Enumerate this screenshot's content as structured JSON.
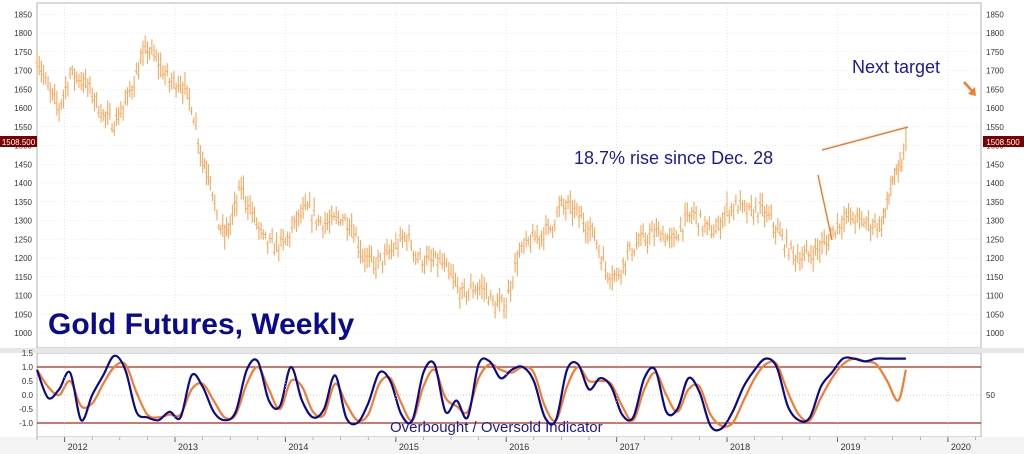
{
  "chart_data": [
    {
      "type": "bar",
      "subtype": "ohlc",
      "title": "Gold Futures, Weekly",
      "annotations": [
        "18.7% rise since Dec. 28",
        "Next target"
      ],
      "price_tag": "1508.500",
      "ylim": [
        960,
        1880
      ],
      "yticks": [
        1000,
        1050,
        1100,
        1150,
        1200,
        1250,
        1300,
        1350,
        1400,
        1450,
        1500,
        1550,
        1600,
        1650,
        1700,
        1750,
        1800,
        1850
      ],
      "x_range": [
        2011.75,
        2020.3
      ],
      "xticks": [
        "2012",
        "2013",
        "2014",
        "2015",
        "2016",
        "2017",
        "2018",
        "2019",
        "2020"
      ],
      "grid": true,
      "colors": {
        "bars": "#f5a85e",
        "title": "#0a0a8c",
        "annotation": "#1a1a9a",
        "arrow": "#f47c30",
        "tag_bg": "#7a0000"
      },
      "series": [
        {
          "x": [
            2011.75,
            2011.85,
            2011.95,
            2012.05,
            2012.15,
            2012.25,
            2012.35,
            2012.45,
            2012.55,
            2012.65,
            2012.75,
            2012.85,
            2012.95,
            2013.05,
            2013.15,
            2013.25,
            2013.32,
            2013.38,
            2013.45,
            2013.5,
            2013.6,
            2013.7,
            2013.8,
            2013.9,
            2014.0,
            2014.1,
            2014.2,
            2014.3,
            2014.4,
            2014.5,
            2014.6,
            2014.7,
            2014.8,
            2014.9,
            2015.0,
            2015.1,
            2015.2,
            2015.3,
            2015.4,
            2015.5,
            2015.6,
            2015.7,
            2015.8,
            2015.9,
            2016.0,
            2016.1,
            2016.2,
            2016.3,
            2016.4,
            2016.5,
            2016.6,
            2016.7,
            2016.8,
            2016.9,
            2017.0,
            2017.1,
            2017.2,
            2017.3,
            2017.4,
            2017.5,
            2017.6,
            2017.7,
            2017.8,
            2017.9,
            2018.0,
            2018.1,
            2018.2,
            2018.3,
            2018.4,
            2018.5,
            2018.6,
            2018.7,
            2018.8,
            2018.9,
            2019.0,
            2019.1,
            2019.2,
            2019.3,
            2019.4,
            2019.45,
            2019.5,
            2019.55,
            2019.6,
            2019.62
          ],
          "values": [
            1740,
            1650,
            1600,
            1690,
            1680,
            1640,
            1580,
            1560,
            1610,
            1690,
            1760,
            1720,
            1670,
            1670,
            1610,
            1460,
            1420,
            1300,
            1260,
            1290,
            1390,
            1320,
            1250,
            1230,
            1240,
            1300,
            1330,
            1300,
            1290,
            1310,
            1290,
            1210,
            1180,
            1200,
            1230,
            1260,
            1200,
            1190,
            1190,
            1150,
            1100,
            1120,
            1120,
            1070,
            1080,
            1200,
            1240,
            1260,
            1280,
            1340,
            1330,
            1300,
            1260,
            1170,
            1150,
            1210,
            1240,
            1260,
            1270,
            1240,
            1290,
            1320,
            1280,
            1270,
            1330,
            1340,
            1320,
            1330,
            1300,
            1250,
            1210,
            1200,
            1220,
            1240,
            1290,
            1310,
            1300,
            1290,
            1290,
            1340,
            1410,
            1420,
            1470,
            1510
          ]
        }
      ]
    },
    {
      "type": "line",
      "title": "Overbought / Oversold Indicator",
      "ylim": [
        -1.5,
        1.5
      ],
      "yticks": [
        "1.5",
        "1.0",
        "0.5",
        "0.0",
        "-0.5",
        "-1.0"
      ],
      "right_tick": "50",
      "levels": [
        1.0,
        -1.0
      ],
      "series": [
        {
          "name": "",
          "color": "#0a0a8c",
          "x": [
            2011.75,
            2011.85,
            2011.95,
            2012.05,
            2012.15,
            2012.25,
            2012.35,
            2012.45,
            2012.55,
            2012.65,
            2012.75,
            2012.85,
            2012.95,
            2013.05,
            2013.15,
            2013.25,
            2013.35,
            2013.45,
            2013.55,
            2013.65,
            2013.75,
            2013.85,
            2013.95,
            2014.05,
            2014.15,
            2014.25,
            2014.35,
            2014.45,
            2014.55,
            2014.65,
            2014.75,
            2014.85,
            2014.95,
            2015.05,
            2015.15,
            2015.25,
            2015.35,
            2015.45,
            2015.55,
            2015.65,
            2015.75,
            2015.85,
            2015.95,
            2016.05,
            2016.15,
            2016.25,
            2016.35,
            2016.45,
            2016.55,
            2016.65,
            2016.75,
            2016.85,
            2016.95,
            2017.05,
            2017.15,
            2017.25,
            2017.35,
            2017.45,
            2017.55,
            2017.65,
            2017.75,
            2017.85,
            2017.95,
            2018.05,
            2018.15,
            2018.25,
            2018.35,
            2018.45,
            2018.55,
            2018.65,
            2018.75,
            2018.85,
            2018.95,
            2019.05,
            2019.15,
            2019.25,
            2019.35,
            2019.45,
            2019.55,
            2019.62
          ],
          "values": [
            0.9,
            -0.1,
            0.2,
            0.8,
            -0.9,
            0.0,
            0.7,
            1.4,
            0.9,
            -0.6,
            -0.8,
            -0.9,
            -0.6,
            -0.8,
            0.7,
            0.3,
            -0.6,
            -0.9,
            -0.6,
            0.9,
            1.2,
            -0.2,
            -0.4,
            1.0,
            -0.2,
            -0.8,
            -0.5,
            0.7,
            -0.8,
            -1.0,
            -0.3,
            0.8,
            0.5,
            -0.7,
            -0.9,
            0.8,
            1.1,
            -0.6,
            -0.2,
            -0.8,
            1.1,
            1.2,
            0.6,
            0.9,
            1.0,
            0.5,
            -0.8,
            -0.9,
            0.9,
            1.1,
            0.2,
            0.6,
            0.3,
            -0.7,
            -0.8,
            0.6,
            0.9,
            -0.6,
            -0.5,
            0.6,
            0.1,
            -1.1,
            -1.2,
            -0.6,
            0.3,
            0.9,
            1.3,
            1.0,
            -0.4,
            -0.9,
            -0.8,
            0.3,
            0.8,
            1.3,
            1.3,
            1.2,
            1.3,
            1.3,
            1.3,
            1.3
          ]
        },
        {
          "name": "",
          "color": "#f47c30",
          "x": [
            2011.75,
            2011.85,
            2011.95,
            2012.05,
            2012.15,
            2012.25,
            2012.35,
            2012.45,
            2012.55,
            2012.65,
            2012.75,
            2012.85,
            2012.95,
            2013.05,
            2013.15,
            2013.25,
            2013.35,
            2013.45,
            2013.55,
            2013.65,
            2013.75,
            2013.85,
            2013.95,
            2014.05,
            2014.15,
            2014.25,
            2014.35,
            2014.45,
            2014.55,
            2014.65,
            2014.75,
            2014.85,
            2014.95,
            2015.05,
            2015.15,
            2015.25,
            2015.35,
            2015.45,
            2015.55,
            2015.65,
            2015.75,
            2015.85,
            2015.95,
            2016.05,
            2016.15,
            2016.25,
            2016.35,
            2016.45,
            2016.55,
            2016.65,
            2016.75,
            2016.85,
            2016.95,
            2017.05,
            2017.15,
            2017.25,
            2017.35,
            2017.45,
            2017.55,
            2017.65,
            2017.75,
            2017.85,
            2017.95,
            2018.05,
            2018.15,
            2018.25,
            2018.35,
            2018.45,
            2018.55,
            2018.65,
            2018.75,
            2018.85,
            2018.95,
            2019.05,
            2019.15,
            2019.25,
            2019.35,
            2019.45,
            2019.55,
            2019.62
          ],
          "values": [
            0.9,
            0.3,
            0.0,
            0.5,
            -0.4,
            -0.3,
            0.4,
            1.0,
            1.1,
            0.1,
            -0.7,
            -0.8,
            -0.7,
            -0.7,
            0.2,
            0.4,
            -0.2,
            -0.8,
            -0.7,
            0.4,
            1.0,
            0.2,
            -0.5,
            0.5,
            0.3,
            -0.6,
            -0.7,
            0.4,
            -0.3,
            -0.9,
            -0.7,
            0.4,
            0.6,
            -0.3,
            -0.9,
            0.3,
            0.9,
            -0.1,
            -0.4,
            -0.6,
            0.6,
            1.1,
            0.9,
            0.8,
            1.0,
            0.8,
            -0.4,
            -0.9,
            0.3,
            1.0,
            0.5,
            0.5,
            0.4,
            -0.4,
            -0.9,
            0.2,
            0.8,
            0.0,
            -0.6,
            0.2,
            0.3,
            -0.7,
            -1.1,
            -1.0,
            -0.2,
            0.6,
            1.1,
            1.1,
            0.1,
            -0.7,
            -0.9,
            -0.1,
            0.6,
            1.1,
            1.3,
            1.2,
            1.1,
            0.5,
            -0.2,
            0.9
          ]
        }
      ]
    }
  ]
}
